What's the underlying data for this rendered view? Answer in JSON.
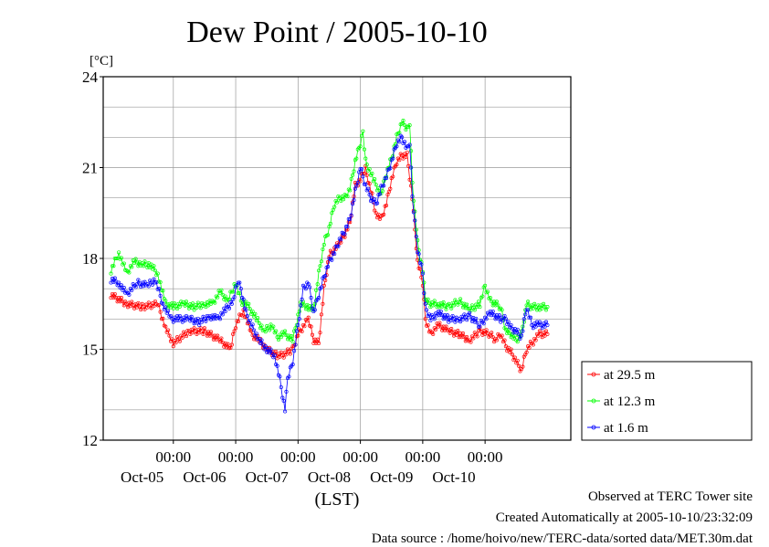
{
  "chart_data": {
    "type": "line",
    "title": "Dew Point / 2005-10-10",
    "ylabel": "[°C]",
    "xlabel": "(LST)",
    "ylim": [
      12,
      24
    ],
    "y_ticks": [
      "12",
      "15",
      "18",
      "21",
      "24"
    ],
    "x_tick_labels": [
      {
        "time": "00:00",
        "date": "Oct-05"
      },
      {
        "time": "00:00",
        "date": "Oct-06"
      },
      {
        "time": "00:00",
        "date": "Oct-07"
      },
      {
        "time": "00:00",
        "date": "Oct-08"
      },
      {
        "time": "00:00",
        "date": "Oct-09"
      },
      {
        "time": "00:00",
        "date": "Oct-10"
      }
    ],
    "grid": true,
    "legend_position": "right",
    "series": [
      {
        "name": "at 29.5 m",
        "color": "#ff0000",
        "points": [
          [
            -24,
            16.8
          ],
          [
            -18,
            16.5
          ],
          [
            -12,
            16.4
          ],
          [
            -6,
            16.5
          ],
          [
            -3,
            15.7
          ],
          [
            0,
            15.2
          ],
          [
            6,
            15.6
          ],
          [
            12,
            15.6
          ],
          [
            18,
            15.3
          ],
          [
            22,
            15.0
          ],
          [
            24,
            15.8
          ],
          [
            27,
            16.3
          ],
          [
            30,
            15.5
          ],
          [
            33,
            15.3
          ],
          [
            36,
            15.0
          ],
          [
            40,
            14.8
          ],
          [
            42,
            14.8
          ],
          [
            46,
            15.0
          ],
          [
            48,
            15.5
          ],
          [
            52,
            16.0
          ],
          [
            54,
            15.3
          ],
          [
            56,
            15.2
          ],
          [
            58,
            17.0
          ],
          [
            60,
            18.1
          ],
          [
            64,
            18.5
          ],
          [
            66,
            18.8
          ],
          [
            68,
            19.2
          ],
          [
            70,
            20.4
          ],
          [
            72,
            20.6
          ],
          [
            74,
            21.0
          ],
          [
            75,
            20.6
          ],
          [
            78,
            19.5
          ],
          [
            80,
            19.3
          ],
          [
            82,
            19.8
          ],
          [
            84,
            20.6
          ],
          [
            86,
            21.2
          ],
          [
            88,
            21.4
          ],
          [
            90,
            21.4
          ],
          [
            92,
            20.0
          ],
          [
            94,
            17.9
          ],
          [
            96,
            17.2
          ],
          [
            97,
            16.0
          ],
          [
            99,
            15.5
          ],
          [
            102,
            15.8
          ],
          [
            106,
            15.6
          ],
          [
            110,
            15.5
          ],
          [
            114,
            15.3
          ],
          [
            118,
            15.6
          ],
          [
            122,
            15.5
          ],
          [
            124,
            15.3
          ],
          [
            126,
            15.5
          ],
          [
            128,
            15.1
          ],
          [
            130,
            14.9
          ],
          [
            132,
            14.6
          ],
          [
            134,
            14.3
          ],
          [
            136,
            15.0
          ],
          [
            138,
            15.2
          ],
          [
            141,
            15.5
          ],
          [
            144,
            15.5
          ]
        ]
      },
      {
        "name": "at 12.3 m",
        "color": "#00ff00",
        "points": [
          [
            -24,
            17.6
          ],
          [
            -21,
            18.2
          ],
          [
            -18,
            17.5
          ],
          [
            -15,
            17.9
          ],
          [
            -12,
            17.8
          ],
          [
            -9,
            17.8
          ],
          [
            -6,
            17.5
          ],
          [
            -3,
            16.5
          ],
          [
            0,
            16.4
          ],
          [
            4,
            16.5
          ],
          [
            8,
            16.4
          ],
          [
            12,
            16.5
          ],
          [
            15,
            16.5
          ],
          [
            18,
            16.9
          ],
          [
            21,
            16.6
          ],
          [
            24,
            17.2
          ],
          [
            26,
            16.6
          ],
          [
            29,
            16.4
          ],
          [
            32,
            16.0
          ],
          [
            35,
            15.6
          ],
          [
            38,
            15.8
          ],
          [
            40,
            15.4
          ],
          [
            43,
            15.5
          ],
          [
            46,
            15.3
          ],
          [
            49,
            16.5
          ],
          [
            52,
            16.4
          ],
          [
            54,
            16.3
          ],
          [
            56,
            17.5
          ],
          [
            58,
            18.5
          ],
          [
            60,
            19.0
          ],
          [
            62,
            19.8
          ],
          [
            64,
            20.0
          ],
          [
            66,
            20.0
          ],
          [
            68,
            20.3
          ],
          [
            70,
            21.2
          ],
          [
            72,
            21.8
          ],
          [
            73,
            22.2
          ],
          [
            74,
            21.2
          ],
          [
            77,
            20.6
          ],
          [
            80,
            20.1
          ],
          [
            82,
            20.8
          ],
          [
            84,
            21.3
          ],
          [
            86,
            22.0
          ],
          [
            88,
            22.5
          ],
          [
            90,
            22.3
          ],
          [
            91,
            22.5
          ],
          [
            92,
            20.5
          ],
          [
            94,
            18.5
          ],
          [
            96,
            17.6
          ],
          [
            97,
            16.6
          ],
          [
            99,
            16.5
          ],
          [
            102,
            16.5
          ],
          [
            106,
            16.4
          ],
          [
            110,
            16.6
          ],
          [
            114,
            16.3
          ],
          [
            118,
            16.5
          ],
          [
            120,
            17.1
          ],
          [
            122,
            16.6
          ],
          [
            126,
            16.4
          ],
          [
            128,
            15.6
          ],
          [
            130,
            15.5
          ],
          [
            132,
            15.3
          ],
          [
            134,
            15.5
          ],
          [
            136,
            16.5
          ],
          [
            138,
            16.4
          ],
          [
            141,
            16.4
          ],
          [
            144,
            16.4
          ]
        ]
      },
      {
        "name": "at 1.6 m",
        "color": "#0000ff",
        "points": [
          [
            -24,
            17.3
          ],
          [
            -21,
            17.2
          ],
          [
            -18,
            16.8
          ],
          [
            -14,
            17.2
          ],
          [
            -10,
            17.1
          ],
          [
            -7,
            17.3
          ],
          [
            -4,
            16.5
          ],
          [
            -1,
            16.0
          ],
          [
            2,
            16.0
          ],
          [
            6,
            16.0
          ],
          [
            10,
            15.9
          ],
          [
            14,
            16.1
          ],
          [
            17,
            16.0
          ],
          [
            20,
            16.3
          ],
          [
            23,
            16.6
          ],
          [
            25,
            17.3
          ],
          [
            26,
            17.0
          ],
          [
            28,
            16.2
          ],
          [
            30,
            15.8
          ],
          [
            33,
            15.3
          ],
          [
            36,
            15.0
          ],
          [
            39,
            14.8
          ],
          [
            41,
            14.0
          ],
          [
            43,
            13.0
          ],
          [
            44,
            14.0
          ],
          [
            46,
            14.6
          ],
          [
            48,
            15.8
          ],
          [
            50,
            17.0
          ],
          [
            52,
            17.2
          ],
          [
            54,
            16.2
          ],
          [
            56,
            16.8
          ],
          [
            58,
            17.4
          ],
          [
            60,
            17.9
          ],
          [
            62,
            18.2
          ],
          [
            64,
            18.6
          ],
          [
            66,
            18.9
          ],
          [
            68,
            19.3
          ],
          [
            70,
            20.2
          ],
          [
            72,
            21.0
          ],
          [
            74,
            20.4
          ],
          [
            76,
            20.0
          ],
          [
            78,
            19.8
          ],
          [
            80,
            20.3
          ],
          [
            82,
            20.7
          ],
          [
            84,
            21.2
          ],
          [
            86,
            21.8
          ],
          [
            88,
            22.0
          ],
          [
            90,
            21.6
          ],
          [
            91,
            21.8
          ],
          [
            92,
            20.0
          ],
          [
            94,
            18.3
          ],
          [
            96,
            17.5
          ],
          [
            97,
            16.4
          ],
          [
            99,
            16.0
          ],
          [
            102,
            16.2
          ],
          [
            106,
            16.0
          ],
          [
            110,
            16.0
          ],
          [
            114,
            16.1
          ],
          [
            118,
            15.8
          ],
          [
            122,
            16.2
          ],
          [
            126,
            16.0
          ],
          [
            128,
            16.0
          ],
          [
            130,
            15.7
          ],
          [
            132,
            15.6
          ],
          [
            134,
            15.4
          ],
          [
            136,
            16.4
          ],
          [
            138,
            15.8
          ],
          [
            141,
            15.8
          ],
          [
            144,
            15.8
          ]
        ]
      }
    ]
  },
  "footer": {
    "observed": "Observed at TERC Tower site",
    "created": "Created Automatically at 2005-10-10/23:32:09",
    "source": "Data source : /home/hoivo/new/TERC-data/sorted  data/MET.30m.dat"
  }
}
